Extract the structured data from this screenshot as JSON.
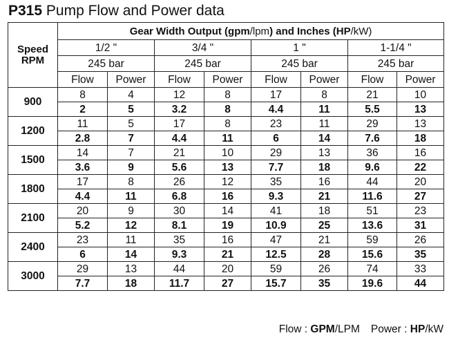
{
  "title": {
    "model": "P315",
    "text": "Pump Flow and Power data"
  },
  "header": {
    "speed_label": "Speed",
    "rpm_label": "RPM",
    "group_label": {
      "parts": [
        {
          "t": "Gear Width Output (",
          "b": true
        },
        {
          "t": "gpm",
          "b": true
        },
        {
          "t": "/lpm",
          "b": false
        },
        {
          "t": ") and Inches (",
          "b": true
        },
        {
          "t": "HP",
          "b": true
        },
        {
          "t": "/kW)",
          "b": false
        }
      ]
    },
    "widths": [
      "1/2 \"",
      "3/4 \"",
      "1 \"",
      "1-1/4 \""
    ],
    "pressure": [
      "245 bar",
      "245 bar",
      "245 bar",
      "245 bar"
    ],
    "col_flow": "Flow",
    "col_power": "Power"
  },
  "rows": [
    {
      "rpm": "900",
      "std": [
        "8",
        "4",
        "12",
        "8",
        "17",
        "8",
        "21",
        "10"
      ],
      "bold": [
        "2",
        "5",
        "3.2",
        "8",
        "4.4",
        "11",
        "5.5",
        "13"
      ]
    },
    {
      "rpm": "1200",
      "std": [
        "11",
        "5",
        "17",
        "8",
        "23",
        "11",
        "29",
        "13"
      ],
      "bold": [
        "2.8",
        "7",
        "4.4",
        "11",
        "6",
        "14",
        "7.6",
        "18"
      ]
    },
    {
      "rpm": "1500",
      "std": [
        "14",
        "7",
        "21",
        "10",
        "29",
        "13",
        "36",
        "16"
      ],
      "bold": [
        "3.6",
        "9",
        "5.6",
        "13",
        "7.7",
        "18",
        "9.6",
        "22"
      ]
    },
    {
      "rpm": "1800",
      "std": [
        "17",
        "8",
        "26",
        "12",
        "35",
        "16",
        "44",
        "20"
      ],
      "bold": [
        "4.4",
        "11",
        "6.8",
        "16",
        "9.3",
        "21",
        "11.6",
        "27"
      ]
    },
    {
      "rpm": "2100",
      "std": [
        "20",
        "9",
        "30",
        "14",
        "41",
        "18",
        "51",
        "23"
      ],
      "bold": [
        "5.2",
        "12",
        "8.1",
        "19",
        "10.9",
        "25",
        "13.6",
        "31"
      ]
    },
    {
      "rpm": "2400",
      "std": [
        "23",
        "11",
        "35",
        "16",
        "47",
        "21",
        "59",
        "26"
      ],
      "bold": [
        "6",
        "14",
        "9.3",
        "21",
        "12.5",
        "28",
        "15.6",
        "35"
      ]
    },
    {
      "rpm": "3000",
      "std": [
        "29",
        "13",
        "44",
        "20",
        "59",
        "26",
        "74",
        "33"
      ],
      "bold": [
        "7.7",
        "18",
        "11.7",
        "27",
        "15.7",
        "35",
        "19.6",
        "44"
      ]
    }
  ],
  "footer": {
    "flow_label": "Flow : ",
    "flow_unit_bold": "GPM",
    "flow_unit_rest": "/LPM",
    "power_label": "Power : ",
    "power_unit_bold": "HP",
    "power_unit_rest": "/kW"
  }
}
